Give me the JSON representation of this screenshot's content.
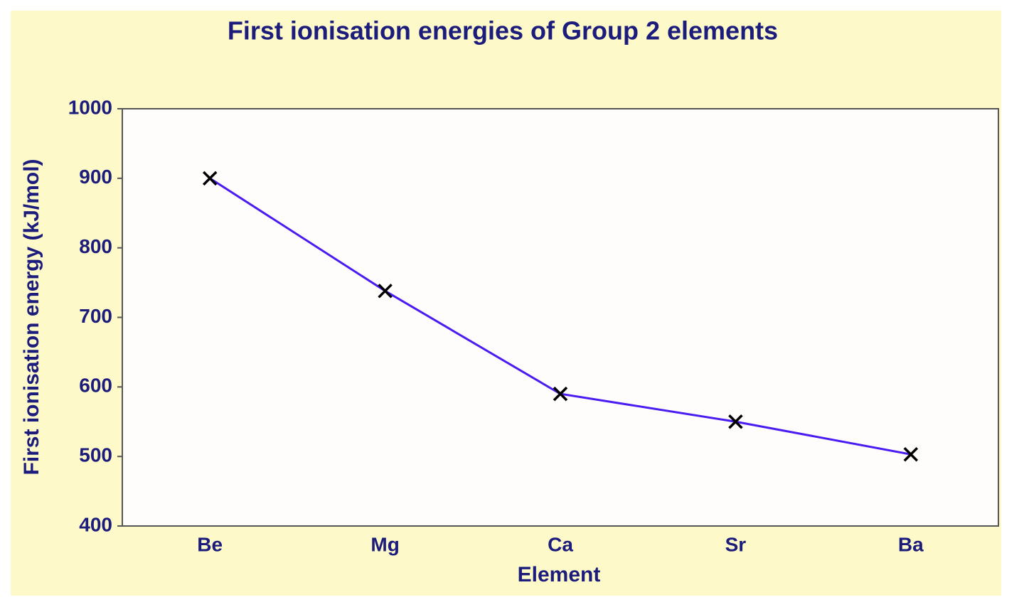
{
  "chart_data": {
    "type": "line",
    "title": "First ionisation energies of Group 2 elements",
    "x_label": "Element",
    "y_label": "First ionisation energy (kJ/mol)",
    "categories": [
      "Be",
      "Mg",
      "Ca",
      "Sr",
      "Ba"
    ],
    "values": [
      900,
      738,
      590,
      550,
      503
    ],
    "color": "#4a1cf2",
    "marker": "x",
    "ylim": [
      400,
      1000
    ],
    "yticks": [
      400,
      500,
      600,
      700,
      800,
      900,
      1000
    ],
    "grid": false
  }
}
